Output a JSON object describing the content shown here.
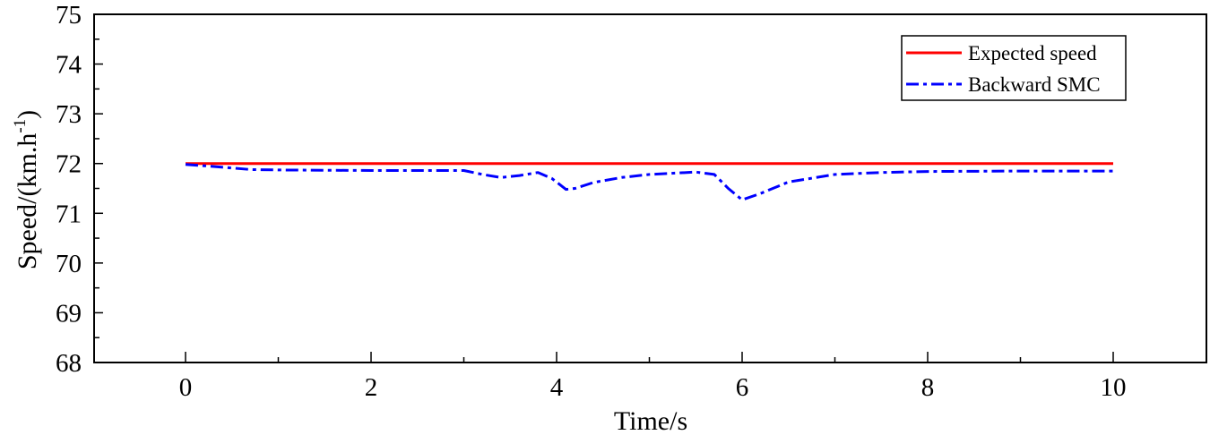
{
  "chart_data": {
    "type": "line",
    "title": "",
    "xlabel": "Time/s",
    "ylabel": "Speed/(km.h",
    "ylabel_superscript": "-1",
    "ylabel_suffix": ")",
    "xlim": [
      -1,
      11
    ],
    "ylim": [
      68,
      75
    ],
    "x_ticks": [
      0,
      2,
      4,
      6,
      8,
      10
    ],
    "x_minor_ticks": [
      1,
      3,
      5,
      7,
      9
    ],
    "y_ticks": [
      68,
      69,
      70,
      71,
      72,
      73,
      74,
      75
    ],
    "y_minor_ticks": [
      68.5,
      69.5,
      70.5,
      71.5,
      72.5,
      73.5,
      74.5
    ],
    "grid": false,
    "legend_position": "upper right",
    "series": [
      {
        "name": "Expected speed",
        "color": "#ff0000",
        "style": "solid",
        "x": [
          0,
          10
        ],
        "y": [
          72.0,
          72.0
        ]
      },
      {
        "name": "Backward SMC",
        "color": "#0000ff",
        "style": "dash-dot",
        "x": [
          0,
          0.3,
          0.7,
          1.0,
          2.0,
          3.0,
          3.2,
          3.4,
          3.6,
          3.8,
          3.95,
          4.1,
          4.2,
          4.4,
          4.7,
          5.0,
          5.5,
          5.7,
          5.85,
          6.0,
          6.2,
          6.5,
          7.0,
          7.5,
          8.0,
          9.0,
          10.0
        ],
        "y": [
          71.98,
          71.94,
          71.88,
          71.87,
          71.86,
          71.86,
          71.78,
          71.72,
          71.76,
          71.82,
          71.7,
          71.48,
          71.5,
          71.62,
          71.72,
          71.78,
          71.83,
          71.78,
          71.5,
          71.27,
          71.4,
          71.63,
          71.78,
          71.82,
          71.84,
          71.85,
          71.85
        ]
      }
    ]
  }
}
